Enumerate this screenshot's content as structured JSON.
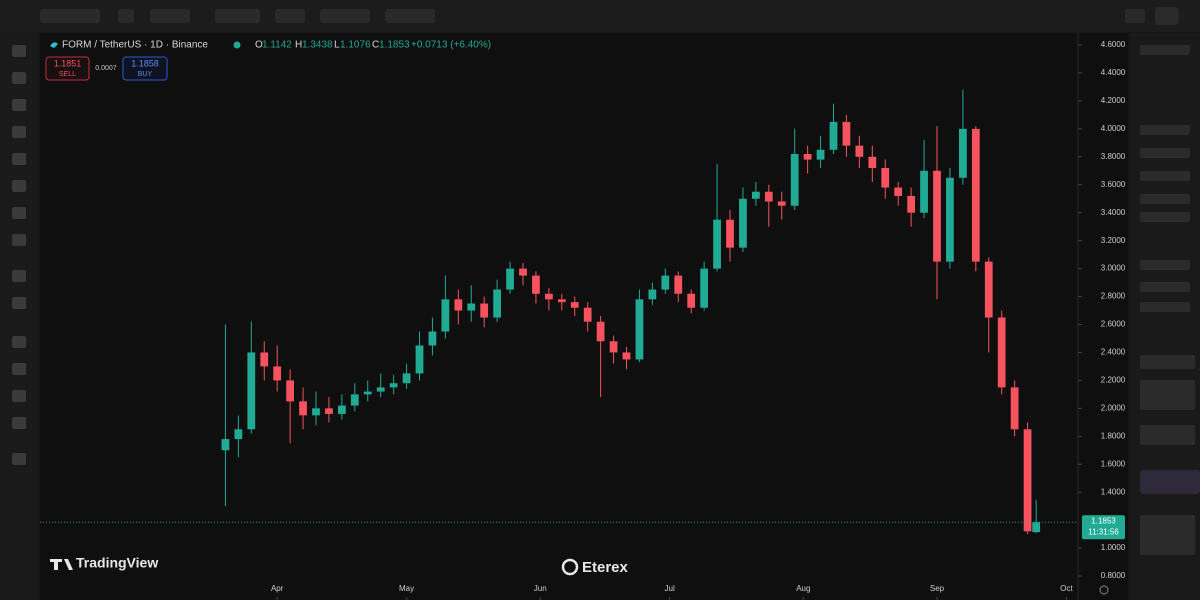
{
  "header": {
    "symbol": "FORM / TetherUS · 1D · Binance",
    "o_label": "O",
    "o": "1.1142",
    "h_label": "H",
    "h": "1.3438",
    "l_label": "L",
    "l": "1.1076",
    "c_label": "C",
    "c": "1.1853",
    "change": "+0.0713 (+6.40%)",
    "sell_price": "1.1851",
    "sell": "SELL",
    "spread": "0.0007",
    "buy_price": "1.1858",
    "buy": "BUY"
  },
  "watermarks": {
    "tradingview": "TradingView",
    "eterex": "Eterex"
  },
  "chart_data": {
    "type": "candlestick",
    "up_color": "#22ab94",
    "down_color": "#f7525f",
    "x": [
      19,
      22,
      25,
      28,
      31,
      34,
      37,
      40,
      43,
      46,
      49,
      52,
      55,
      58,
      61,
      64,
      67,
      70,
      73,
      76,
      79,
      82,
      85,
      88,
      91,
      94,
      97,
      100,
      103,
      106,
      109,
      112,
      115,
      118,
      121,
      124,
      127,
      130,
      133,
      136,
      139,
      142,
      145,
      148,
      151,
      154,
      157,
      160,
      163,
      166,
      169,
      172,
      175,
      178,
      181,
      184,
      187,
      190,
      193,
      196,
      199,
      202,
      205,
      207
    ],
    "open": [
      1.7,
      1.78,
      1.85,
      2.4,
      2.3,
      2.2,
      2.05,
      1.95,
      2.0,
      1.96,
      2.02,
      2.1,
      2.12,
      2.15,
      2.18,
      2.25,
      2.45,
      2.55,
      2.78,
      2.7,
      2.75,
      2.65,
      2.85,
      3.0,
      2.95,
      2.82,
      2.78,
      2.76,
      2.72,
      2.62,
      2.48,
      2.4,
      2.35,
      2.78,
      2.85,
      2.95,
      2.82,
      2.72,
      3.0,
      3.35,
      3.15,
      3.5,
      3.55,
      3.48,
      3.45,
      3.82,
      3.78,
      3.85,
      4.05,
      3.88,
      3.8,
      3.72,
      3.58,
      3.52,
      3.4,
      3.7,
      3.05,
      3.65,
      4.0,
      3.05,
      2.65,
      2.15,
      1.85,
      1.1142
    ],
    "high": [
      2.6,
      1.95,
      2.62,
      2.48,
      2.45,
      2.28,
      2.15,
      2.12,
      2.08,
      2.1,
      2.18,
      2.2,
      2.25,
      2.24,
      2.32,
      2.55,
      2.65,
      2.95,
      2.85,
      2.88,
      2.8,
      2.92,
      3.05,
      3.04,
      2.98,
      2.86,
      2.82,
      2.8,
      2.76,
      2.66,
      2.52,
      2.44,
      2.85,
      2.9,
      3.0,
      2.98,
      2.85,
      3.05,
      3.75,
      3.42,
      3.58,
      3.62,
      3.6,
      3.55,
      4.0,
      3.88,
      3.95,
      4.18,
      4.1,
      3.95,
      3.88,
      3.78,
      3.62,
      3.58,
      3.92,
      4.02,
      3.72,
      4.28,
      4.02,
      3.08,
      2.7,
      2.2,
      1.9,
      1.3438
    ],
    "low": [
      1.3,
      1.65,
      1.82,
      2.2,
      2.12,
      1.75,
      1.85,
      1.88,
      1.9,
      1.92,
      1.98,
      2.05,
      2.08,
      2.1,
      2.14,
      2.2,
      2.38,
      2.5,
      2.6,
      2.62,
      2.58,
      2.62,
      2.82,
      2.88,
      2.75,
      2.7,
      2.7,
      2.66,
      2.55,
      2.08,
      2.32,
      2.28,
      2.33,
      2.74,
      2.82,
      2.76,
      2.68,
      2.7,
      2.98,
      3.05,
      3.12,
      3.45,
      3.3,
      3.35,
      3.42,
      3.68,
      3.72,
      3.82,
      3.8,
      3.72,
      3.62,
      3.5,
      3.45,
      3.3,
      3.36,
      2.78,
      3.0,
      3.6,
      2.98,
      2.4,
      2.1,
      1.8,
      1.1,
      1.1076
    ],
    "close": [
      1.78,
      1.85,
      2.4,
      2.3,
      2.2,
      2.05,
      1.95,
      2.0,
      1.96,
      2.02,
      2.1,
      2.12,
      2.15,
      2.18,
      2.25,
      2.45,
      2.55,
      2.78,
      2.7,
      2.75,
      2.65,
      2.85,
      3.0,
      2.95,
      2.82,
      2.78,
      2.76,
      2.72,
      2.62,
      2.48,
      2.4,
      2.35,
      2.78,
      2.85,
      2.95,
      2.82,
      2.72,
      3.0,
      3.35,
      3.15,
      3.5,
      3.55,
      3.48,
      3.45,
      3.82,
      3.78,
      3.85,
      4.05,
      3.88,
      3.8,
      3.72,
      3.58,
      3.52,
      3.4,
      3.7,
      3.05,
      3.65,
      4.0,
      3.05,
      2.65,
      2.15,
      1.85,
      1.12,
      1.1853
    ],
    "xlim": [
      -24,
      216
    ],
    "xticks": [
      {
        "value": 31,
        "label": "Apr"
      },
      {
        "value": 61,
        "label": "May"
      },
      {
        "value": 92,
        "label": "Jun"
      },
      {
        "value": 122,
        "label": "Jul"
      },
      {
        "value": 153,
        "label": "Aug"
      },
      {
        "value": 184,
        "label": "Sep"
      },
      {
        "value": 214,
        "label": "Oct"
      }
    ],
    "ylim": [
      0.65,
      4.686
    ],
    "yticks": [
      {
        "value": 0.8,
        "label": "0.8000"
      },
      {
        "value": 1.0,
        "label": "1.0000"
      },
      {
        "value": 1.4,
        "label": "1.4000"
      },
      {
        "value": 1.6,
        "label": "1.6000"
      },
      {
        "value": 1.8,
        "label": "1.8000"
      },
      {
        "value": 2.0,
        "label": "2.0000"
      },
      {
        "value": 2.2,
        "label": "2.2000"
      },
      {
        "value": 2.4,
        "label": "2.4000"
      },
      {
        "value": 2.6,
        "label": "2.6000"
      },
      {
        "value": 2.8,
        "label": "2.8000"
      },
      {
        "value": 3.0,
        "label": "3.0000"
      },
      {
        "value": 3.2,
        "label": "3.2000"
      },
      {
        "value": 3.4,
        "label": "3.4000"
      },
      {
        "value": 3.6,
        "label": "3.6000"
      },
      {
        "value": 3.8,
        "label": "3.8000"
      },
      {
        "value": 4.0,
        "label": "4.0000"
      },
      {
        "value": 4.2,
        "label": "4.2000"
      },
      {
        "value": 4.4,
        "label": "4.4000"
      },
      {
        "value": 4.6,
        "label": "4.6000"
      }
    ],
    "last_price": 1.1853,
    "countdown": "11:31:56",
    "grid": false
  }
}
